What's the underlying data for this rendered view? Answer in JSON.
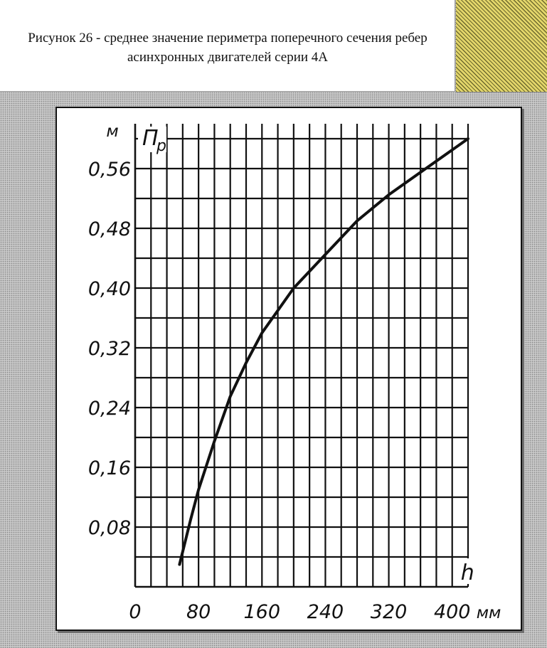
{
  "caption": {
    "line1": "Рисунок 26 - среднее значение периметра поперечного сечения ребер",
    "line2": "асинхронных двигателей серии 4А"
  },
  "chart_data": {
    "type": "line",
    "ylabel": "П",
    "ylabel_sub": "р",
    "yunit": "м",
    "xlabel": "h",
    "xunit": "мм",
    "xlim": [
      0,
      420
    ],
    "ylim": [
      0,
      0.62
    ],
    "x_ticks": [
      {
        "value": 0,
        "label": "0"
      },
      {
        "value": 80,
        "label": "80"
      },
      {
        "value": 160,
        "label": "160"
      },
      {
        "value": 240,
        "label": "240"
      },
      {
        "value": 320,
        "label": "320"
      },
      {
        "value": 400,
        "label": "400"
      }
    ],
    "y_ticks": [
      {
        "value": 0.08,
        "label": "0,08"
      },
      {
        "value": 0.16,
        "label": "0,16"
      },
      {
        "value": 0.24,
        "label": "0,24"
      },
      {
        "value": 0.32,
        "label": "0,32"
      },
      {
        "value": 0.4,
        "label": "0,40"
      },
      {
        "value": 0.48,
        "label": "0,48"
      },
      {
        "value": 0.56,
        "label": "0,56"
      }
    ],
    "grid": true,
    "series": [
      {
        "x": [
          56,
          70,
          80,
          100,
          120,
          140,
          160,
          200,
          240,
          280,
          320,
          360,
          400,
          420
        ],
        "y": [
          0.03,
          0.09,
          0.13,
          0.195,
          0.255,
          0.3,
          0.34,
          0.4,
          0.445,
          0.49,
          0.525,
          0.555,
          0.585,
          0.6
        ]
      }
    ]
  }
}
